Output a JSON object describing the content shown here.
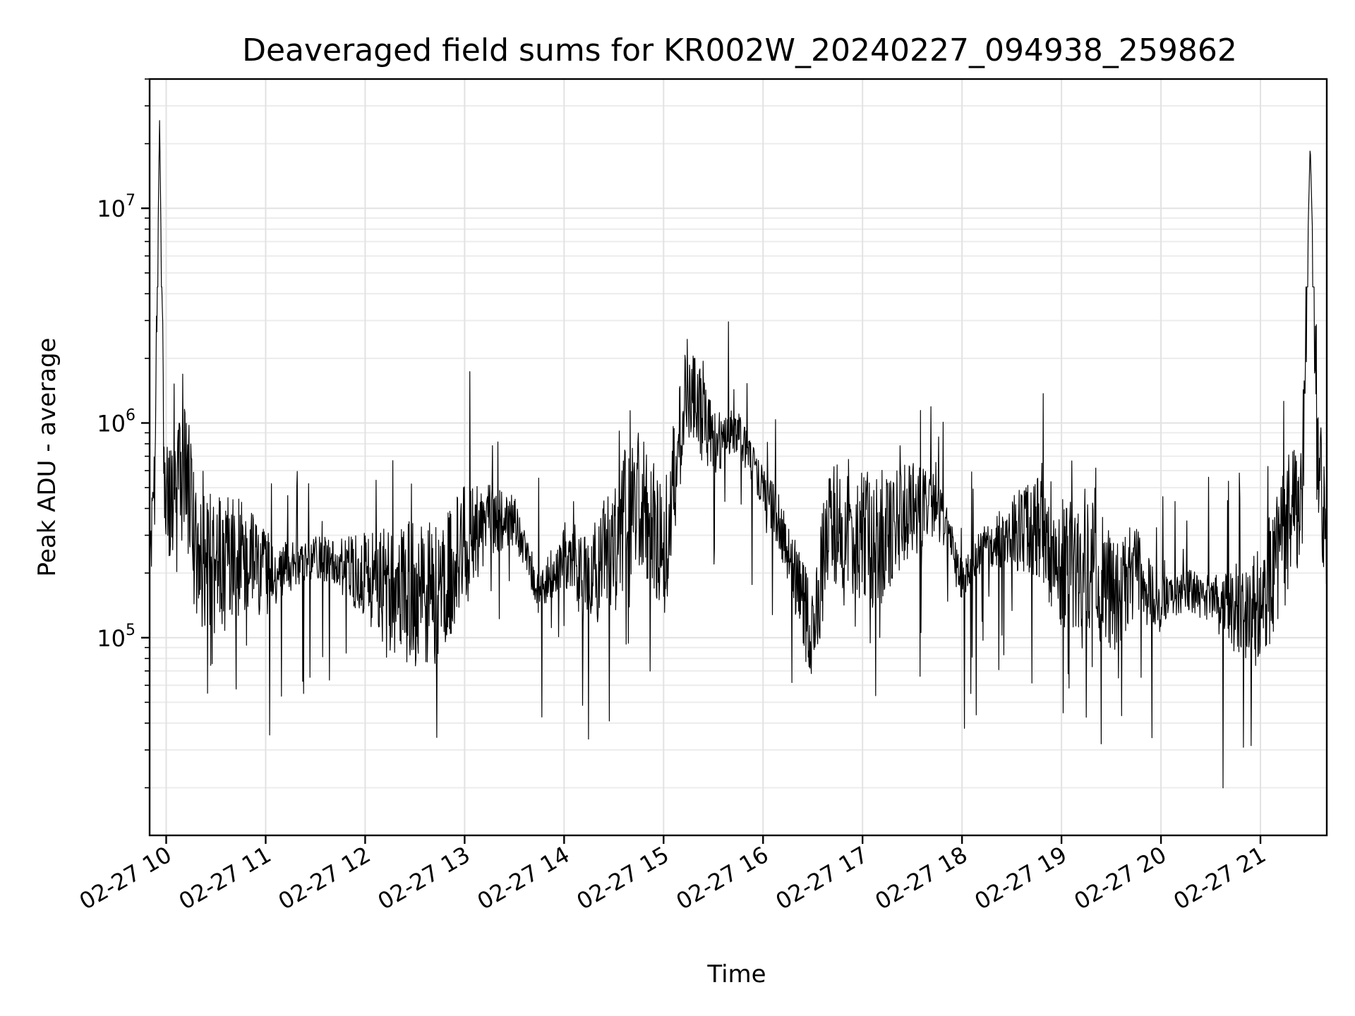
{
  "chart_data": {
    "type": "line",
    "title": "Deaveraged field sums for KR002W_20240227_094938_259862",
    "xlabel": "Time",
    "ylabel": "Peak ADU - average",
    "xlim": [
      "2024-02-27 09:50",
      "2024-02-27 21:40"
    ],
    "ylim": [
      12000,
      40000000
    ],
    "yscale": "log",
    "grid": true,
    "colors": {
      "line": "#000000",
      "grid": "#e2e2e2"
    },
    "x_tick_labels": [
      "02-27 10",
      "02-27 11",
      "02-27 12",
      "02-27 13",
      "02-27 14",
      "02-27 15",
      "02-27 16",
      "02-27 17",
      "02-27 18",
      "02-27 19",
      "02-27 20",
      "02-27 21"
    ],
    "x_tick_times": [
      "2024-02-27 10:00",
      "2024-02-27 11:00",
      "2024-02-27 12:00",
      "2024-02-27 13:00",
      "2024-02-27 14:00",
      "2024-02-27 15:00",
      "2024-02-27 16:00",
      "2024-02-27 17:00",
      "2024-02-27 18:00",
      "2024-02-27 19:00",
      "2024-02-27 20:00",
      "2024-02-27 21:00"
    ],
    "y_ticks": [
      {
        "value": 100000,
        "base": "10",
        "exp": "5"
      },
      {
        "value": 1000000,
        "base": "10",
        "exp": "6"
      },
      {
        "value": 10000000,
        "base": "10",
        "exp": "7"
      }
    ],
    "series": [
      {
        "x": [
          "2024-02-27 09:50",
          "2024-02-27 09:53",
          "2024-02-27 09:56",
          "2024-02-27 09:59",
          "2024-02-27 10:05",
          "2024-02-27 10:12",
          "2024-02-27 10:18",
          "2024-02-27 10:30",
          "2024-02-27 10:45",
          "2024-02-27 11:00",
          "2024-02-27 11:15",
          "2024-02-27 11:30",
          "2024-02-27 11:45",
          "2024-02-27 12:00",
          "2024-02-27 12:15",
          "2024-02-27 12:30",
          "2024-02-27 12:45",
          "2024-02-27 13:00",
          "2024-02-27 13:15",
          "2024-02-27 13:30",
          "2024-02-27 13:45",
          "2024-02-27 14:00",
          "2024-02-27 14:15",
          "2024-02-27 14:30",
          "2024-02-27 14:45",
          "2024-02-27 15:00",
          "2024-02-27 15:15",
          "2024-02-27 15:30",
          "2024-02-27 15:45",
          "2024-02-27 16:00",
          "2024-02-27 16:10",
          "2024-02-27 16:20",
          "2024-02-27 16:30",
          "2024-02-27 16:40",
          "2024-02-27 17:00",
          "2024-02-27 17:15",
          "2024-02-27 17:30",
          "2024-02-27 17:45",
          "2024-02-27 18:00",
          "2024-02-27 18:15",
          "2024-02-27 18:30",
          "2024-02-27 18:45",
          "2024-02-27 19:00",
          "2024-02-27 19:15",
          "2024-02-27 19:30",
          "2024-02-27 19:45",
          "2024-02-27 20:00",
          "2024-02-27 20:15",
          "2024-02-27 20:30",
          "2024-02-27 20:45",
          "2024-02-27 21:00",
          "2024-02-27 21:15",
          "2024-02-27 21:25",
          "2024-02-27 21:30",
          "2024-02-27 21:35",
          "2024-02-27 21:40"
        ],
        "y": [
          200000,
          450000,
          26000000,
          400000,
          450000,
          600000,
          250000,
          220000,
          230000,
          200000,
          210000,
          240000,
          220000,
          190000,
          170000,
          160000,
          160000,
          280000,
          350000,
          350000,
          160000,
          250000,
          170000,
          300000,
          450000,
          240000,
          1500000,
          800000,
          900000,
          500000,
          350000,
          180000,
          100000,
          380000,
          280000,
          300000,
          400000,
          420000,
          180000,
          280000,
          300000,
          350000,
          220000,
          230000,
          160000,
          200000,
          140000,
          170000,
          150000,
          130000,
          140000,
          300000,
          500000,
          20000000,
          600000,
          250000
        ]
      }
    ],
    "fluctuation": {
      "min": 18000,
      "max": 4300000
    }
  }
}
